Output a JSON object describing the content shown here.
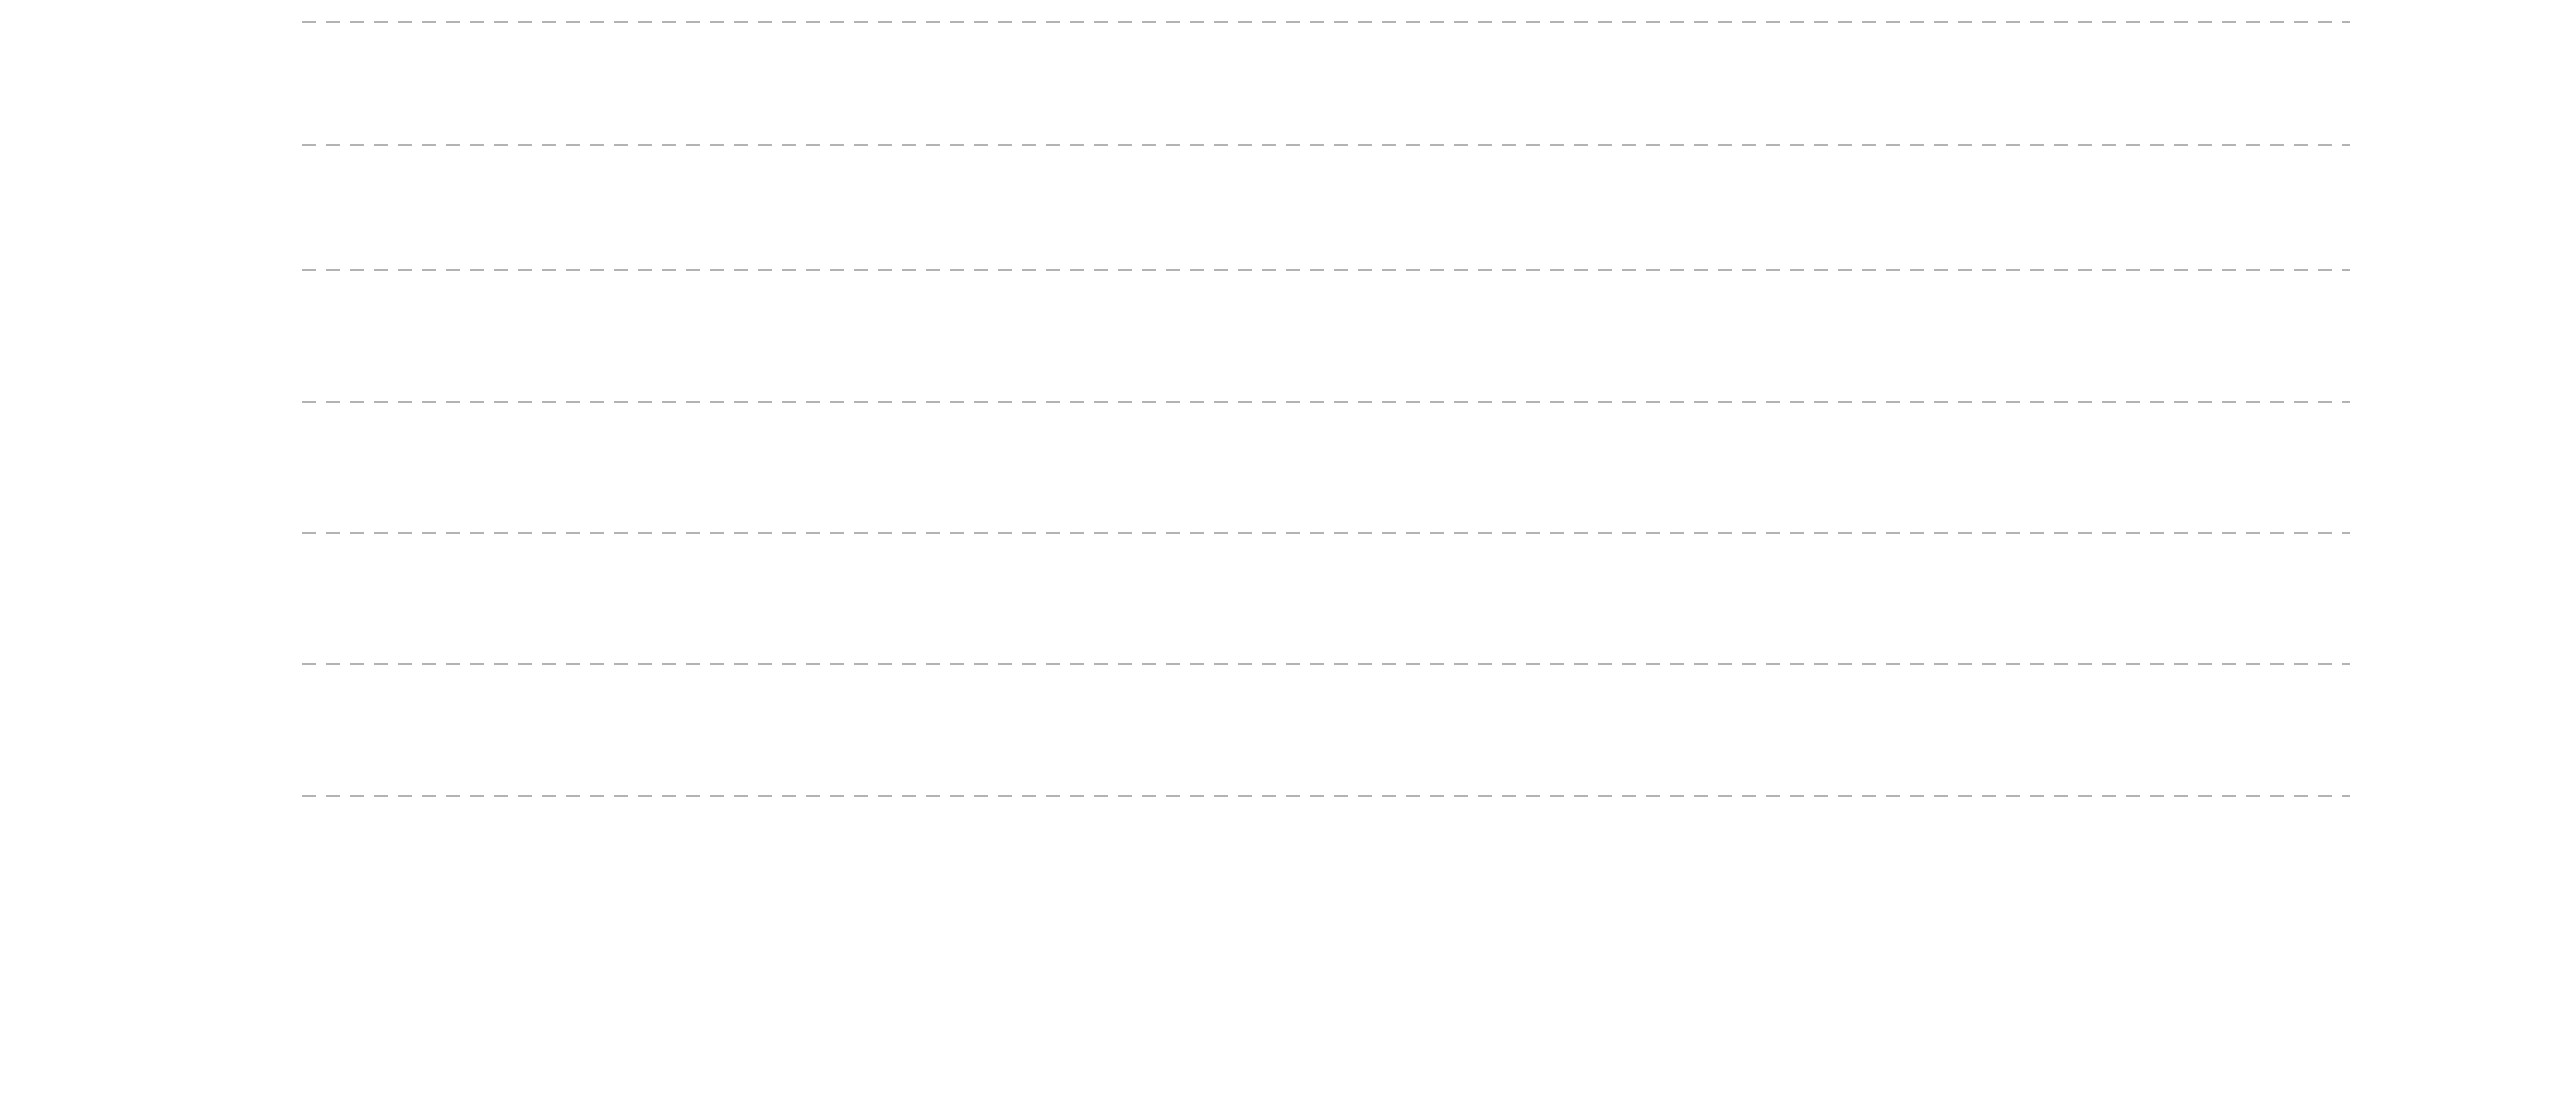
{
  "chart_data": {
    "type": "line",
    "title": "",
    "xlabel": "",
    "ylabel": "",
    "grid": true,
    "grid_style": "dashed-horizontal",
    "gridline_count": 7,
    "legend": "none",
    "series": [],
    "colors": {
      "background": "#ffffff",
      "gridline": "#b3b3b3"
    }
  }
}
